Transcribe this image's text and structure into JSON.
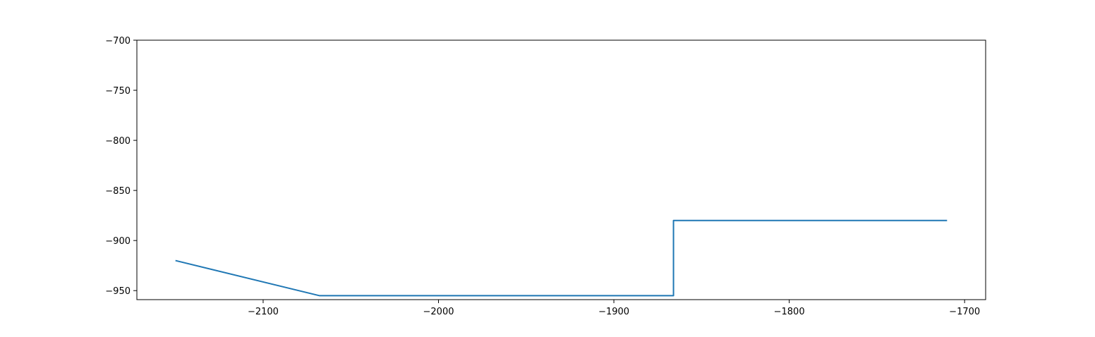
{
  "chart_data": {
    "type": "line",
    "title": "",
    "xlabel": "",
    "ylabel": "",
    "xlim": [
      -2172,
      -1688
    ],
    "ylim": [
      -959,
      -700
    ],
    "xticks": [
      -2100,
      -2000,
      -1900,
      -1800,
      -1700
    ],
    "yticks": [
      -700,
      -750,
      -800,
      -850,
      -900,
      -950
    ],
    "xtick_labels": [
      "−2100",
      "−2000",
      "−1900",
      "−1800",
      "−1700"
    ],
    "ytick_labels": [
      "−700",
      "−750",
      "−800",
      "−850",
      "−900",
      "−950"
    ],
    "grid": false,
    "legend": "none",
    "series": [
      {
        "color": "#1f77b4",
        "x": [
          -2150,
          -2068,
          -1866,
          -1866,
          -1710
        ],
        "y": [
          -920,
          -955,
          -955,
          -880,
          -880
        ]
      }
    ]
  }
}
